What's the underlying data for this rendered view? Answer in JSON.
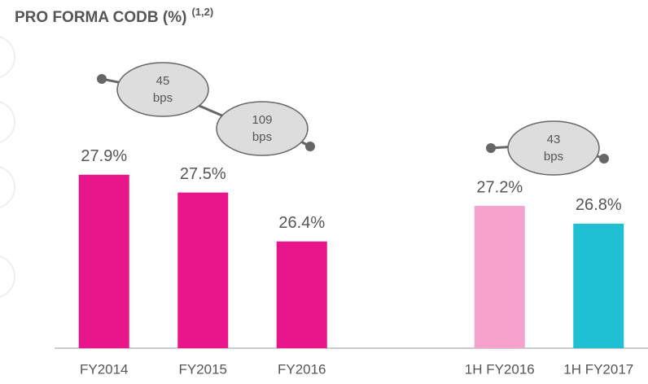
{
  "chart_data": {
    "type": "bar",
    "title": "PRO FORMA CODB (%)",
    "title_note": "(1,2)",
    "categories": [
      "FY2014",
      "FY2015",
      "FY2016",
      null,
      "1H FY2016",
      "1H FY2017"
    ],
    "values": [
      27.9,
      27.5,
      26.4,
      null,
      27.2,
      26.8
    ],
    "value_labels": [
      "27.9%",
      "27.5%",
      "26.4%",
      null,
      "27.2%",
      "26.8%"
    ],
    "colors": [
      "#e8168a",
      "#e8168a",
      "#e8168a",
      null,
      "#f5a3cd",
      "#1fbfd4"
    ],
    "ylim": [
      24,
      30
    ],
    "annotations": [
      {
        "text": [
          "45",
          "bps"
        ]
      },
      {
        "text": [
          "109",
          "bps"
        ]
      },
      {
        "text": [
          "43",
          "bps"
        ]
      }
    ]
  }
}
